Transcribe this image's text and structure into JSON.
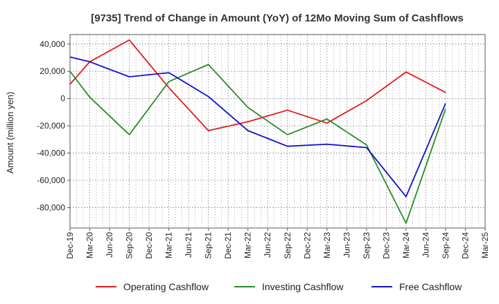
{
  "chart_data": {
    "type": "line",
    "title": "[9735]  Trend of Change in Amount (YoY) of 12Mo Moving Sum of Cashflows",
    "xlabel": "",
    "ylabel": "Amount (million yen)",
    "categories": [
      "Dec-19",
      "Mar-20",
      "Jun-20",
      "Sep-20",
      "Dec-20",
      "Mar-21",
      "Jun-21",
      "Sep-21",
      "Dec-21",
      "Mar-22",
      "Jun-22",
      "Sep-22",
      "Dec-22",
      "Mar-23",
      "Jun-23",
      "Sep-23",
      "Dec-23",
      "Mar-24",
      "Jun-24",
      "Sep-24",
      "Dec-24",
      "Mar-25"
    ],
    "ylim": [
      -95000,
      47000
    ],
    "yticks": [
      40000,
      20000,
      0,
      -20000,
      -40000,
      -60000,
      -80000
    ],
    "ytick_labels": [
      "40,000",
      "20,000",
      "0",
      "-20,000",
      "-40,000",
      "-60,000",
      "-80,000"
    ],
    "grid": true,
    "legend_position": "bottom",
    "series": [
      {
        "name": "Operating Cashflow",
        "color": "#e31a1c",
        "values": [
          10500,
          27000,
          null,
          43000,
          null,
          8000,
          null,
          -23500,
          null,
          -17000,
          null,
          -8500,
          null,
          -18000,
          null,
          -1500,
          null,
          19500,
          null,
          4500,
          null,
          null
        ]
      },
      {
        "name": "Investing Cashflow",
        "color": "#2a8a2a",
        "values": [
          20000,
          1000,
          null,
          -26500,
          null,
          12500,
          null,
          25000,
          null,
          -6500,
          null,
          -26500,
          null,
          -15000,
          null,
          -34000,
          null,
          -91500,
          null,
          -7500,
          null,
          null
        ]
      },
      {
        "name": "Free Cashflow",
        "color": "#1010cc",
        "values": [
          30500,
          27000,
          null,
          16000,
          null,
          19000,
          null,
          1500,
          null,
          -23500,
          null,
          -35000,
          null,
          -33500,
          null,
          -36000,
          null,
          -72000,
          null,
          -3500,
          null,
          null
        ]
      }
    ]
  }
}
